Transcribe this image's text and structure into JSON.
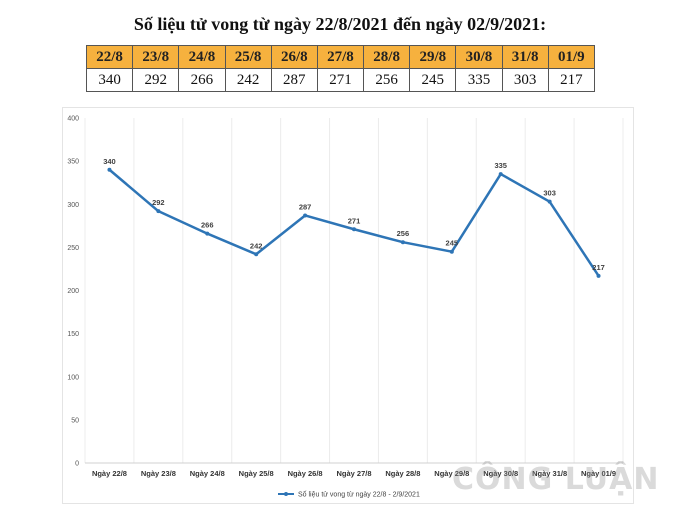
{
  "title": "Số liệu tử vong từ ngày 22/8/2021 đến ngày 02/9/2021:",
  "table": {
    "headers": [
      "22/8",
      "23/8",
      "24/8",
      "25/8",
      "26/8",
      "27/8",
      "28/8",
      "29/8",
      "30/8",
      "31/8",
      "01/9"
    ],
    "values": [
      "340",
      "292",
      "266",
      "242",
      "287",
      "271",
      "256",
      "245",
      "335",
      "303",
      "217"
    ]
  },
  "chart_data": {
    "type": "line",
    "categories": [
      "Ngày 22/8",
      "Ngày 23/8",
      "Ngày 24/8",
      "Ngày 25/8",
      "Ngày 26/8",
      "Ngày 27/8",
      "Ngày 28/8",
      "Ngày 29/8",
      "Ngày 30/8",
      "Ngày 31/8",
      "Ngày 01/9"
    ],
    "series": [
      {
        "name": "Số liệu tử vong từ ngày 22/8 - 2/9/2021",
        "values": [
          340,
          292,
          266,
          242,
          287,
          271,
          256,
          245,
          335,
          303,
          217
        ],
        "color": "#2e75b6"
      }
    ],
    "ylim": [
      0,
      400
    ],
    "yticks": [
      0,
      50,
      100,
      150,
      200,
      250,
      300,
      350,
      400
    ],
    "grid": "vertical",
    "legend_position": "bottom"
  },
  "watermark": "CÔNG LUẬN"
}
